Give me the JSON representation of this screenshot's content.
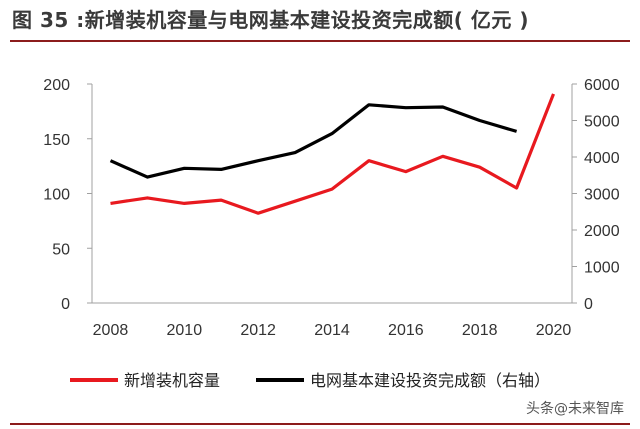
{
  "header": {
    "title": "图 35 :新增装机容量与电网基本建设投资完成额( 亿元 )"
  },
  "watermark": "头条@未来智库",
  "colors": {
    "series1": "#e8191f",
    "series2": "#000000",
    "axis": "#a0a0a0",
    "accent": "#8c1c1c"
  },
  "chart_data": {
    "type": "line",
    "x_ticks": [
      "2008",
      "2010",
      "2012",
      "2014",
      "2016",
      "2018",
      "2020"
    ],
    "xlim": [
      2007.5,
      2020.5
    ],
    "y_left": {
      "ticks": [
        "0",
        "50",
        "100",
        "150",
        "200"
      ],
      "ylim": [
        0,
        200
      ]
    },
    "y_right": {
      "ticks": [
        "0",
        "1000",
        "2000",
        "3000",
        "4000",
        "5000",
        "6000"
      ],
      "ylim": [
        0,
        6000
      ]
    },
    "grid": false,
    "legend_position": "bottom",
    "series": [
      {
        "name": "新增装机容量",
        "axis": "left",
        "x": [
          2008,
          2009,
          2010,
          2011,
          2012,
          2013,
          2014,
          2015,
          2016,
          2017,
          2018,
          2019,
          2020
        ],
        "values": [
          91,
          96,
          91,
          94,
          82,
          93,
          104,
          130,
          120,
          134,
          124,
          105,
          191
        ]
      },
      {
        "name": "电网基本建设投资完成额（右轴）",
        "axis": "right",
        "x": [
          2008,
          2009,
          2010,
          2011,
          2012,
          2013,
          2014,
          2015,
          2016,
          2017,
          2018,
          2019
        ],
        "values": [
          3900,
          3450,
          3690,
          3660,
          3900,
          4120,
          4640,
          5430,
          5350,
          5370,
          5000,
          4700
        ]
      }
    ]
  }
}
